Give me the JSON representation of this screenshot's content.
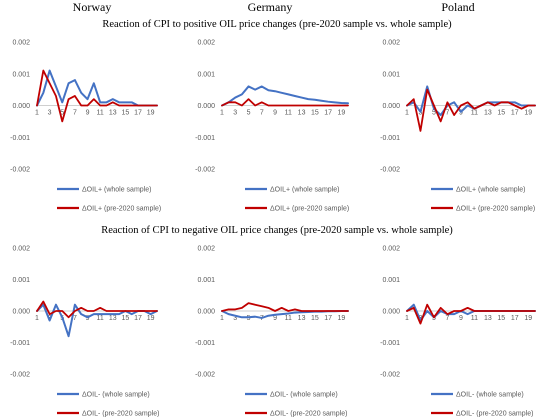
{
  "column_titles": [
    "Norway",
    "Germany",
    "Poland"
  ],
  "section_titles": [
    "Reaction of CPI to positive OIL price changes (pre-2020 sample vs. whole sample)",
    "Reaction of CPI to negative OIL price changes (pre-2020 sample vs. whole sample)"
  ],
  "colors": {
    "whole": "#4472C4",
    "pre2020": "#C00000",
    "zero_line": "#BFBFBF",
    "tick_text": "#595959"
  },
  "chart_data": [
    {
      "type": "line",
      "panel": "Norway - positive",
      "yticks": [
        "0.002",
        "0.001",
        "0.000",
        "-0.001",
        "-0.002"
      ],
      "ylim": [
        -0.002,
        0.002
      ],
      "xticks": [
        "1",
        "3",
        "5",
        "7",
        "9",
        "11",
        "13",
        "15",
        "17",
        "19"
      ],
      "x": [
        1,
        2,
        3,
        4,
        5,
        6,
        7,
        8,
        9,
        10,
        11,
        12,
        13,
        14,
        15,
        16,
        17,
        18,
        19,
        20
      ],
      "legend": [
        "ΔOIL+ (whole sample)",
        "ΔOIL+ (pre-2020 sample)"
      ],
      "series": [
        {
          "name": "ΔOIL+ (whole sample)",
          "values": [
            0.0,
            0.0004,
            0.0011,
            0.0006,
            0.0001,
            0.0007,
            0.0008,
            0.0004,
            0.0002,
            0.0007,
            0.0001,
            0.0001,
            0.0002,
            0.0001,
            0.0001,
            0.0001,
            0.0,
            0.0,
            0.0,
            0.0
          ]
        },
        {
          "name": "ΔOIL+ (pre-2020 sample)",
          "values": [
            0.0,
            0.0011,
            0.0007,
            0.0003,
            -0.0005,
            0.0002,
            0.0003,
            0.0,
            0.0,
            0.0002,
            0.0,
            0.0,
            0.0001,
            0.0,
            0.0,
            0.0,
            0.0,
            0.0,
            0.0,
            0.0
          ]
        }
      ]
    },
    {
      "type": "line",
      "panel": "Germany - positive",
      "yticks": [
        "0.002",
        "0.001",
        "0.000",
        "-0.001",
        "-0.002"
      ],
      "ylim": [
        -0.002,
        0.002
      ],
      "xticks": [
        "1",
        "3",
        "5",
        "7",
        "9",
        "11",
        "13",
        "15",
        "17",
        "19"
      ],
      "x": [
        1,
        2,
        3,
        4,
        5,
        6,
        7,
        8,
        9,
        10,
        11,
        12,
        13,
        14,
        15,
        16,
        17,
        18,
        19,
        20
      ],
      "legend": [
        "ΔOIL+ (whole sample)",
        "ΔOIL+ (pre-2020 sample)"
      ],
      "series": [
        {
          "name": "ΔOIL+ (whole sample)",
          "values": [
            0.0,
            0.0001,
            0.00025,
            0.00035,
            0.0006,
            0.0005,
            0.0006,
            0.00048,
            0.00045,
            0.0004,
            0.00035,
            0.0003,
            0.00025,
            0.0002,
            0.00018,
            0.00015,
            0.00012,
            0.0001,
            8e-05,
            7e-05
          ]
        },
        {
          "name": "ΔOIL+ (pre-2020 sample)",
          "values": [
            0.0,
            0.0001,
            0.0001,
            0.0,
            0.0002,
            0.0,
            0.0001,
            0.0,
            0.0,
            0.0,
            0.0,
            0.0,
            0.0,
            0.0,
            0.0,
            0.0,
            0.0,
            0.0,
            0.0,
            0.0
          ]
        }
      ]
    },
    {
      "type": "line",
      "panel": "Poland - positive",
      "yticks": [
        "0.002",
        "0.001",
        "0.000",
        "-0.001",
        "-0.002"
      ],
      "ylim": [
        -0.002,
        0.002
      ],
      "xticks": [
        "1",
        "3",
        "5",
        "7",
        "9",
        "11",
        "13",
        "15",
        "17",
        "19"
      ],
      "x": [
        1,
        2,
        3,
        4,
        5,
        6,
        7,
        8,
        9,
        10,
        11,
        12,
        13,
        14,
        15,
        16,
        17,
        18,
        19,
        20
      ],
      "legend": [
        "ΔOIL+ (whole sample)",
        "ΔOIL+ (pre-2020 sample)"
      ],
      "series": [
        {
          "name": "ΔOIL+ (whole sample)",
          "values": [
            0.0,
            0.0001,
            -0.0002,
            0.0006,
            -0.0001,
            -0.0003,
            0.0,
            0.0001,
            -0.0002,
            0.0,
            -0.0001,
            0.0,
            0.0001,
            0.0001,
            0.0001,
            0.0001,
            0.0001,
            0.0,
            0.0,
            0.0
          ]
        },
        {
          "name": "ΔOIL+ (pre-2020 sample)",
          "values": [
            0.0,
            0.0002,
            -0.0008,
            0.0005,
            0.0,
            -0.0005,
            0.0001,
            -0.0003,
            0.0,
            0.0001,
            -0.0001,
            0.0,
            0.0001,
            0.0,
            0.0001,
            0.0001,
            0.0,
            -0.0001,
            0.0,
            0.0
          ]
        }
      ]
    },
    {
      "type": "line",
      "panel": "Norway - negative",
      "yticks": [
        "0.002",
        "0.001",
        "0.000",
        "-0.001",
        "-0.002"
      ],
      "ylim": [
        -0.002,
        0.002
      ],
      "xticks": [
        "1",
        "3",
        "5",
        "7",
        "9",
        "11",
        "13",
        "15",
        "17",
        "19"
      ],
      "x": [
        1,
        2,
        3,
        4,
        5,
        6,
        7,
        8,
        9,
        10,
        11,
        12,
        13,
        14,
        15,
        16,
        17,
        18,
        19,
        20
      ],
      "legend": [
        "ΔOIL- (whole sample)",
        "ΔOIL- (pre-2020 sample)"
      ],
      "series": [
        {
          "name": "ΔOIL- (whole sample)",
          "values": [
            0.0,
            0.0002,
            -0.0003,
            0.0002,
            -0.0002,
            -0.0008,
            0.0002,
            -0.0001,
            -0.0002,
            -0.0001,
            -0.0001,
            -0.0001,
            -0.0001,
            -0.0001,
            0.0,
            -0.0001,
            0.0,
            0.0,
            -0.0001,
            0.0
          ]
        },
        {
          "name": "ΔOIL- (pre-2020 sample)",
          "values": [
            0.0,
            0.0003,
            -0.0001,
            0.0,
            0.0,
            -0.0002,
            0.0,
            0.0001,
            0.0,
            0.0,
            0.0001,
            0.0,
            0.0,
            0.0,
            0.0,
            0.0,
            0.0,
            0.0,
            0.0,
            0.0
          ]
        }
      ]
    },
    {
      "type": "line",
      "panel": "Germany - negative",
      "yticks": [
        "0.002",
        "0.001",
        "0.000",
        "-0.001",
        "-0.002"
      ],
      "ylim": [
        -0.002,
        0.002
      ],
      "xticks": [
        "1",
        "3",
        "5",
        "7",
        "9",
        "11",
        "13",
        "15",
        "17",
        "19"
      ],
      "x": [
        1,
        2,
        3,
        4,
        5,
        6,
        7,
        8,
        9,
        10,
        11,
        12,
        13,
        14,
        15,
        16,
        17,
        18,
        19,
        20
      ],
      "legend": [
        "ΔOIL- (whole sample)",
        "ΔOIL- (pre-2020 sample)"
      ],
      "series": [
        {
          "name": "ΔOIL- (whole sample)",
          "values": [
            0.0,
            -0.0001,
            -0.00015,
            -0.0002,
            -0.0002,
            -0.00018,
            -0.00022,
            -0.00015,
            -0.00012,
            -0.0001,
            -8e-05,
            -5e-05,
            -4e-05,
            -3e-05,
            -2e-05,
            -2e-05,
            -1e-05,
            -1e-05,
            0.0,
            0.0
          ]
        },
        {
          "name": "ΔOIL- (pre-2020 sample)",
          "values": [
            0.0,
            5e-05,
            5e-05,
            0.0001,
            0.00025,
            0.0002,
            0.00015,
            0.0001,
            0.0,
            0.0001,
            0.0,
            5e-05,
            0.0,
            0.0,
            0.0,
            0.0,
            0.0,
            0.0,
            0.0,
            0.0
          ]
        }
      ]
    },
    {
      "type": "line",
      "panel": "Poland - negative",
      "yticks": [
        "0.002",
        "0.001",
        "0.000",
        "-0.001",
        "-0.002"
      ],
      "ylim": [
        -0.002,
        0.002
      ],
      "xticks": [
        "1",
        "3",
        "5",
        "7",
        "9",
        "11",
        "13",
        "15",
        "17",
        "19"
      ],
      "x": [
        1,
        2,
        3,
        4,
        5,
        6,
        7,
        8,
        9,
        10,
        11,
        12,
        13,
        14,
        15,
        16,
        17,
        18,
        19,
        20
      ],
      "legend": [
        "ΔOIL- (whole sample)",
        "ΔOIL- (pre-2020 sample)"
      ],
      "series": [
        {
          "name": "ΔOIL- (whole sample)",
          "values": [
            0.0,
            0.0002,
            -0.0003,
            0.0,
            -0.0002,
            0.0,
            -0.0001,
            -0.0001,
            0.0,
            -0.0001,
            0.0,
            0.0,
            0.0,
            0.0,
            0.0,
            0.0,
            0.0,
            0.0,
            0.0,
            0.0
          ]
        },
        {
          "name": "ΔOIL- (pre-2020 sample)",
          "values": [
            0.0,
            0.0001,
            -0.0004,
            0.0002,
            -0.0002,
            0.0001,
            -0.0001,
            0.0,
            0.0,
            0.0001,
            0.0,
            0.0,
            0.0,
            0.0,
            0.0,
            0.0,
            0.0,
            0.0,
            0.0,
            0.0
          ]
        }
      ]
    }
  ]
}
